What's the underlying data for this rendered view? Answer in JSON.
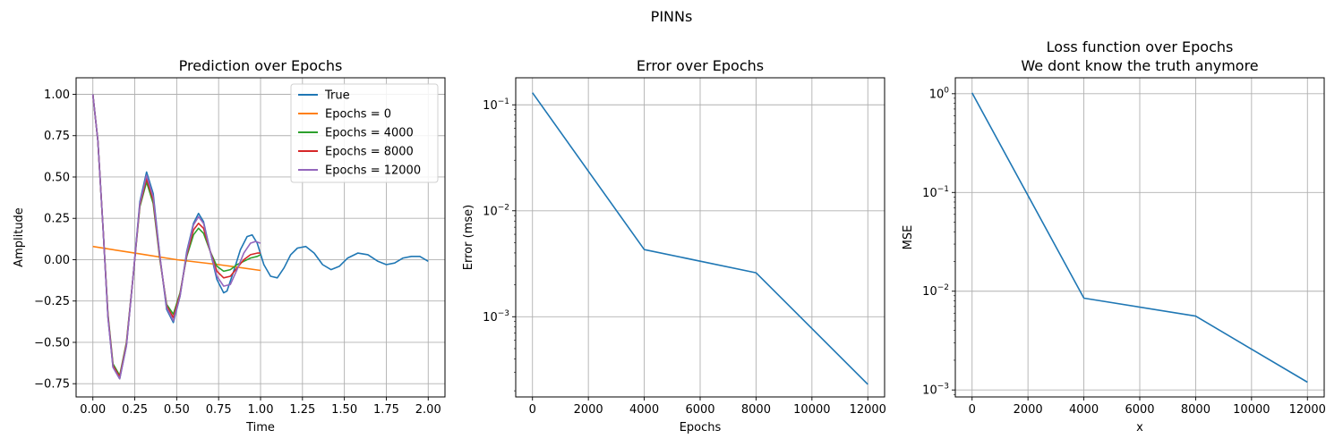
{
  "figure": {
    "title": "PINNs"
  },
  "chart_data": [
    {
      "type": "line",
      "title": "Prediction over Epochs",
      "xlabel": "Time",
      "ylabel": "Amplitude",
      "xlim": [
        -0.1,
        2.1
      ],
      "ylim": [
        -0.83,
        1.1
      ],
      "xticks": [
        0,
        0.25,
        0.5,
        0.75,
        1.0,
        1.25,
        1.5,
        1.75,
        2.0
      ],
      "xtick_labels": [
        "0.00",
        "0.25",
        "0.50",
        "0.75",
        "1.00",
        "1.25",
        "1.50",
        "1.75",
        "2.00"
      ],
      "yticks": [
        -0.75,
        -0.5,
        -0.25,
        0,
        0.25,
        0.5,
        0.75,
        1.0
      ],
      "ytick_labels": [
        "−0.75",
        "−0.50",
        "−0.25",
        "0.00",
        "0.25",
        "0.50",
        "0.75",
        "1.00"
      ],
      "grid": true,
      "legend_position": "top-right",
      "series": [
        {
          "name": "True",
          "color": "#1f77b4",
          "x": [
            0,
            0.03,
            0.06,
            0.09,
            0.12,
            0.16,
            0.2,
            0.24,
            0.28,
            0.32,
            0.36,
            0.4,
            0.44,
            0.48,
            0.52,
            0.56,
            0.6,
            0.63,
            0.66,
            0.7,
            0.74,
            0.78,
            0.8,
            0.84,
            0.88,
            0.92,
            0.95,
            0.98,
            1.02,
            1.06,
            1.1,
            1.14,
            1.18,
            1.22,
            1.27,
            1.32,
            1.37,
            1.42,
            1.47,
            1.52,
            1.58,
            1.64,
            1.7,
            1.75,
            1.8,
            1.85,
            1.9,
            1.95,
            2.0
          ],
          "y": [
            1.0,
            0.72,
            0.2,
            -0.35,
            -0.65,
            -0.72,
            -0.52,
            -0.1,
            0.35,
            0.53,
            0.4,
            0.02,
            -0.3,
            -0.38,
            -0.22,
            0.05,
            0.22,
            0.28,
            0.23,
            0.05,
            -0.12,
            -0.2,
            -0.19,
            -0.07,
            0.06,
            0.14,
            0.15,
            0.1,
            -0.03,
            -0.1,
            -0.11,
            -0.05,
            0.03,
            0.07,
            0.08,
            0.04,
            -0.03,
            -0.06,
            -0.04,
            0.01,
            0.04,
            0.03,
            -0.01,
            -0.03,
            -0.02,
            0.01,
            0.02,
            0.02,
            -0.01
          ]
        },
        {
          "name": "Epochs = 0",
          "color": "#ff7f0e",
          "x": [
            0,
            0.25,
            0.5,
            0.75,
            1.0
          ],
          "y": [
            0.08,
            0.04,
            0.0,
            -0.03,
            -0.065
          ]
        },
        {
          "name": "Epochs = 4000",
          "color": "#2ca02c",
          "x": [
            0,
            0.03,
            0.06,
            0.09,
            0.12,
            0.16,
            0.2,
            0.24,
            0.28,
            0.32,
            0.36,
            0.4,
            0.44,
            0.48,
            0.52,
            0.56,
            0.6,
            0.63,
            0.66,
            0.7,
            0.74,
            0.78,
            0.82,
            0.86,
            0.9,
            0.94,
            0.98,
            1.0
          ],
          "y": [
            1.0,
            0.72,
            0.2,
            -0.33,
            -0.63,
            -0.7,
            -0.5,
            -0.1,
            0.32,
            0.47,
            0.34,
            0.0,
            -0.27,
            -0.33,
            -0.2,
            0.02,
            0.15,
            0.19,
            0.16,
            0.05,
            -0.04,
            -0.07,
            -0.06,
            -0.03,
            -0.01,
            0.01,
            0.02,
            0.03
          ]
        },
        {
          "name": "Epochs = 8000",
          "color": "#d62728",
          "x": [
            0,
            0.03,
            0.06,
            0.09,
            0.12,
            0.16,
            0.2,
            0.24,
            0.28,
            0.32,
            0.36,
            0.4,
            0.44,
            0.48,
            0.52,
            0.56,
            0.6,
            0.63,
            0.66,
            0.7,
            0.74,
            0.78,
            0.82,
            0.86,
            0.9,
            0.94,
            0.98,
            1.0
          ],
          "y": [
            1.0,
            0.72,
            0.2,
            -0.34,
            -0.64,
            -0.71,
            -0.51,
            -0.1,
            0.33,
            0.49,
            0.36,
            0.01,
            -0.28,
            -0.35,
            -0.21,
            0.03,
            0.18,
            0.22,
            0.19,
            0.05,
            -0.07,
            -0.11,
            -0.1,
            -0.05,
            0.0,
            0.03,
            0.04,
            0.04
          ]
        },
        {
          "name": "Epochs = 12000",
          "color": "#9467bd",
          "x": [
            0,
            0.03,
            0.06,
            0.09,
            0.12,
            0.16,
            0.2,
            0.24,
            0.28,
            0.32,
            0.36,
            0.4,
            0.44,
            0.48,
            0.52,
            0.56,
            0.6,
            0.63,
            0.66,
            0.7,
            0.74,
            0.78,
            0.82,
            0.86,
            0.9,
            0.94,
            0.97,
            1.0
          ],
          "y": [
            1.0,
            0.72,
            0.2,
            -0.35,
            -0.65,
            -0.72,
            -0.52,
            -0.1,
            0.34,
            0.51,
            0.38,
            0.02,
            -0.29,
            -0.37,
            -0.22,
            0.04,
            0.21,
            0.26,
            0.22,
            0.05,
            -0.1,
            -0.16,
            -0.15,
            -0.06,
            0.04,
            0.1,
            0.11,
            0.1
          ]
        }
      ]
    },
    {
      "type": "line",
      "title": "Error over Epochs",
      "xlabel": "Epochs",
      "ylabel": "Error (mse)",
      "xlim": [
        -600,
        12600
      ],
      "ylim": [
        0.000175,
        0.18
      ],
      "yscale": "log",
      "xticks": [
        0,
        2000,
        4000,
        6000,
        8000,
        10000,
        12000
      ],
      "xtick_labels": [
        "0",
        "2000",
        "4000",
        "6000",
        "8000",
        "10000",
        "12000"
      ],
      "yticks": [
        0.001,
        0.01,
        0.1
      ],
      "ytick_labels": [
        {
          "base": "10",
          "exp": "−3"
        },
        {
          "base": "10",
          "exp": "−2"
        },
        {
          "base": "10",
          "exp": "−1"
        }
      ],
      "grid": true,
      "series": [
        {
          "color": "#1f77b4",
          "x": [
            0,
            4000,
            8000,
            12000
          ],
          "y": [
            0.13,
            0.0043,
            0.0026,
            0.00023
          ]
        }
      ]
    },
    {
      "type": "line",
      "title": "Loss function over Epochs\nWe dont know the truth anymore",
      "xlabel": "x",
      "ylabel": "MSE",
      "xlim": [
        -600,
        12600
      ],
      "ylim": [
        0.00085,
        1.45
      ],
      "yscale": "log",
      "xticks": [
        0,
        2000,
        4000,
        6000,
        8000,
        10000,
        12000
      ],
      "xtick_labels": [
        "0",
        "2000",
        "4000",
        "6000",
        "8000",
        "10000",
        "12000"
      ],
      "yticks": [
        0.001,
        0.01,
        0.1,
        1
      ],
      "ytick_labels": [
        {
          "base": "10",
          "exp": "−3"
        },
        {
          "base": "10",
          "exp": "−2"
        },
        {
          "base": "10",
          "exp": "−1"
        },
        {
          "base": "10",
          "exp": "0"
        }
      ],
      "grid": true,
      "series": [
        {
          "color": "#1f77b4",
          "x": [
            0,
            4000,
            8000,
            12000
          ],
          "y": [
            1.02,
            0.0085,
            0.0056,
            0.0012
          ]
        }
      ]
    }
  ]
}
